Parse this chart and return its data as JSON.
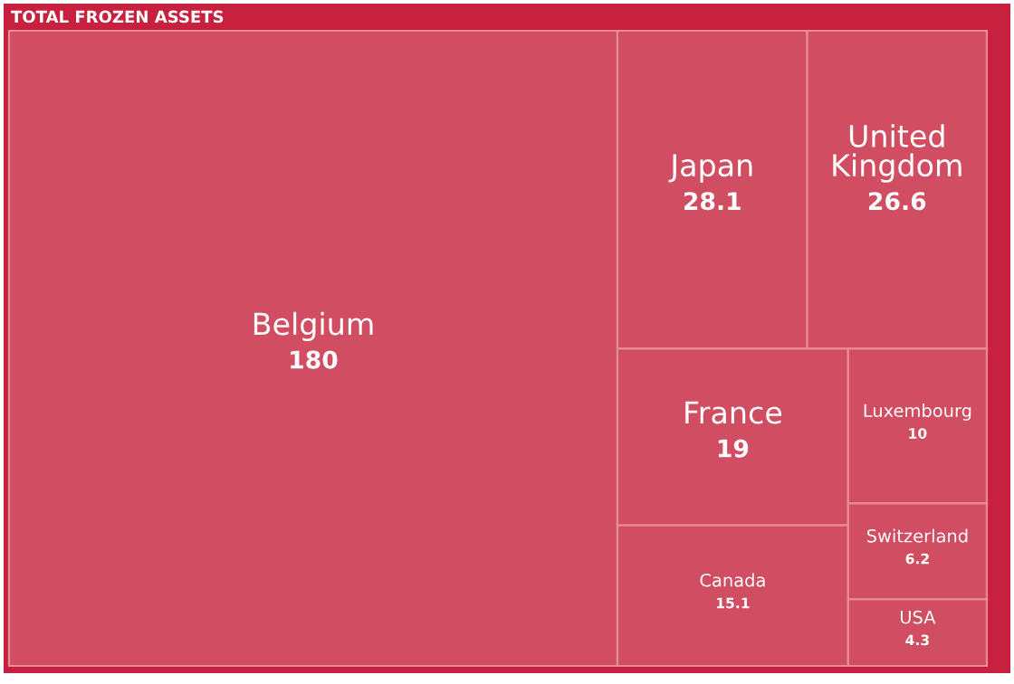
{
  "chart_data": {
    "type": "other",
    "title": "TOTAL FROZEN ASSETS",
    "categories": [
      "Belgium",
      "Japan",
      "United\nKingdom",
      "France",
      "Canada",
      "Luxembourg",
      "Switzerland",
      "USA"
    ],
    "values": [
      180,
      28.1,
      26.6,
      19,
      15.1,
      10,
      6.2,
      4.3
    ],
    "color": "#d14d62",
    "data_labels": true
  }
}
